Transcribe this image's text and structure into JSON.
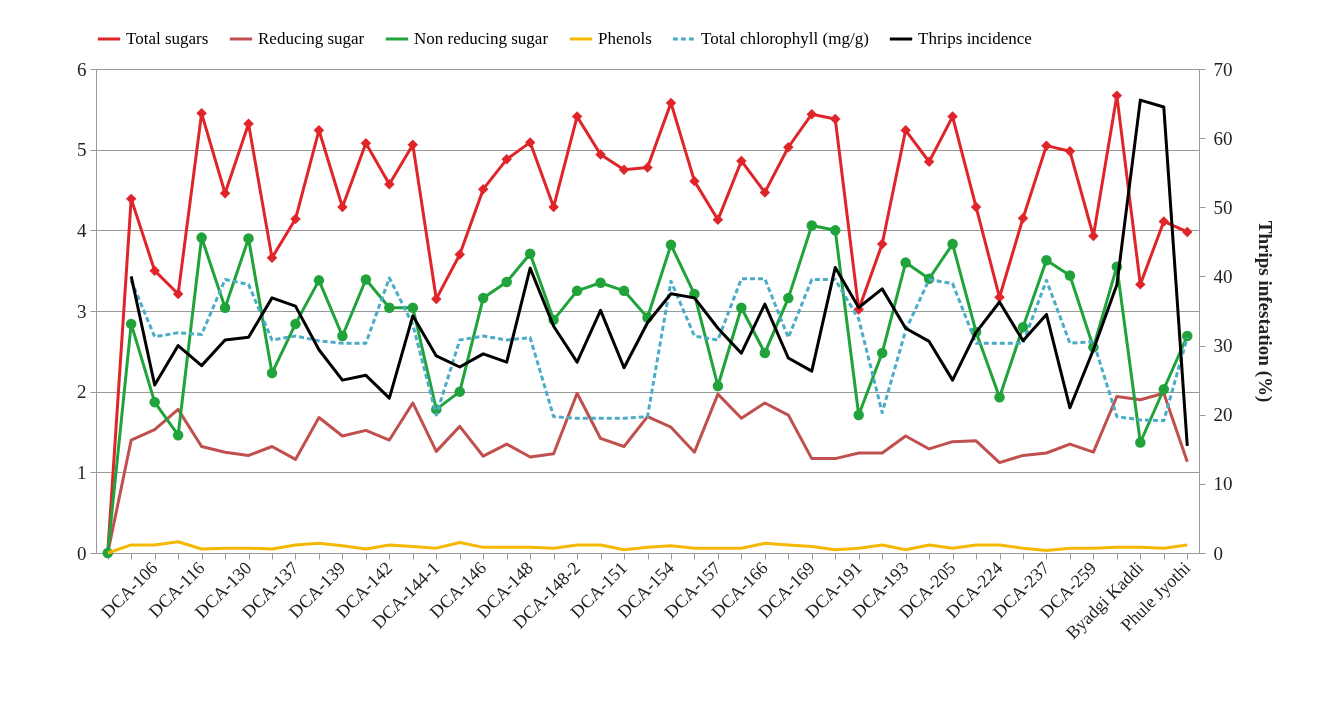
{
  "chart_data": {
    "type": "line",
    "y2label": "Thrips infestation (%)",
    "categories": [
      null,
      null,
      "DCA-106",
      null,
      "DCA-116",
      null,
      "DCA-130",
      null,
      "DCA-137",
      null,
      "DCA-139",
      null,
      "DCA-142",
      null,
      "DCA-144-1",
      null,
      "DCA-146",
      null,
      "DCA-148",
      null,
      "DCA-148-2",
      null,
      "DCA-151",
      null,
      "DCA-154",
      null,
      "DCA-157",
      null,
      "DCA-166",
      null,
      "DCA-169",
      null,
      "DCA-191",
      null,
      "DCA-193",
      null,
      "DCA-205",
      null,
      "DCA-224",
      null,
      "DCA-237",
      null,
      "DCA-259",
      null,
      "Byadgi Kaddi",
      null,
      "Phule Jyothi"
    ],
    "series": [
      {
        "name": "Total sugars",
        "color": "#e0252a",
        "marker": "diamond",
        "values": [
          0,
          4.39,
          3.5,
          3.21,
          5.45,
          4.46,
          5.32,
          3.66,
          4.14,
          5.24,
          4.29,
          5.08,
          4.57,
          5.06,
          3.15,
          3.7,
          4.51,
          4.88,
          5.09,
          4.29,
          5.41,
          4.94,
          4.75,
          4.78,
          5.58,
          4.61,
          4.13,
          4.86,
          4.47,
          5.03,
          5.44,
          5.38,
          3.02,
          3.83,
          5.24,
          4.85,
          5.41,
          4.29,
          3.17,
          4.15,
          5.05,
          4.98,
          3.93,
          5.67,
          3.33,
          4.11,
          3.98
        ]
      },
      {
        "name": "Reducing sugar",
        "color": "#c0504d",
        "values": [
          0,
          1.4,
          1.53,
          1.78,
          1.32,
          1.25,
          1.21,
          1.32,
          1.16,
          1.68,
          1.45,
          1.52,
          1.4,
          1.86,
          1.26,
          1.57,
          1.2,
          1.35,
          1.19,
          1.23,
          1.98,
          1.42,
          1.32,
          1.69,
          1.56,
          1.25,
          1.97,
          1.67,
          1.86,
          1.71,
          1.17,
          1.17,
          1.24,
          1.24,
          1.45,
          1.29,
          1.38,
          1.39,
          1.12,
          1.21,
          1.24,
          1.35,
          1.25,
          1.94,
          1.9,
          1.98,
          1.13
        ]
      },
      {
        "name": "Non reducing sugar",
        "color": "#1fa33a",
        "marker": "circle",
        "values": [
          0,
          2.84,
          1.87,
          1.46,
          3.91,
          3.04,
          3.9,
          2.23,
          2.84,
          3.38,
          2.69,
          3.39,
          3.04,
          3.04,
          1.78,
          2.0,
          3.16,
          3.36,
          3.71,
          2.89,
          3.25,
          3.35,
          3.25,
          2.92,
          3.82,
          3.21,
          2.07,
          3.04,
          2.48,
          3.16,
          4.06,
          4.0,
          1.71,
          2.48,
          3.6,
          3.4,
          3.83,
          2.74,
          1.93,
          2.8,
          3.63,
          3.44,
          2.55,
          3.55,
          1.37,
          2.03,
          2.69
        ]
      },
      {
        "name": "Phenols",
        "color": "#f5b800",
        "values": [
          0,
          0.1,
          0.1,
          0.14,
          0.05,
          0.06,
          0.06,
          0.05,
          0.1,
          0.12,
          0.09,
          0.05,
          0.1,
          0.08,
          0.06,
          0.13,
          0.07,
          0.07,
          0.07,
          0.06,
          0.1,
          0.1,
          0.04,
          0.07,
          0.09,
          0.06,
          0.06,
          0.06,
          0.12,
          0.1,
          0.08,
          0.04,
          0.06,
          0.1,
          0.04,
          0.1,
          0.06,
          0.1,
          0.1,
          0.06,
          0.03,
          0.06,
          0.06,
          0.07,
          0.07,
          0.06,
          0.1
        ]
      },
      {
        "name": "Total chlorophyll (mg/g)",
        "color": "#4bacc6",
        "line_style": "dashed",
        "values": [
          null,
          3.38,
          2.68,
          2.73,
          2.71,
          3.39,
          3.33,
          2.64,
          2.69,
          2.63,
          2.6,
          2.6,
          3.41,
          2.83,
          1.71,
          2.64,
          2.69,
          2.64,
          2.67,
          1.69,
          1.67,
          1.67,
          1.67,
          1.69,
          3.37,
          2.69,
          2.64,
          3.4,
          3.4,
          2.67,
          3.39,
          3.39,
          2.9,
          1.74,
          2.76,
          3.39,
          3.34,
          2.6,
          2.6,
          2.6,
          3.38,
          2.6,
          2.62,
          1.69,
          1.65,
          1.64,
          2.67
        ]
      },
      {
        "name": "Thrips incidence",
        "color": "#000000",
        "axis": "y2",
        "values": [
          null,
          40.0,
          24.3,
          30.0,
          27.1,
          30.8,
          31.2,
          36.9,
          35.7,
          29.4,
          25.0,
          25.7,
          22.4,
          34.3,
          28.5,
          26.9,
          28.8,
          27.6,
          41.2,
          32.8,
          27.6,
          35.1,
          26.8,
          33.3,
          37.5,
          36.9,
          32.5,
          28.9,
          36.0,
          28.2,
          26.3,
          41.3,
          35.5,
          38.2,
          32.5,
          30.6,
          25.0,
          31.9,
          36.3,
          30.7,
          34.5,
          21.0,
          29.4,
          38.8,
          65.5,
          64.5,
          15.5
        ]
      }
    ],
    "ylim": [
      0,
      6
    ],
    "yticks": [
      0,
      1,
      2,
      3,
      4,
      5,
      6
    ],
    "y2lim": [
      0,
      70
    ],
    "y2ticks": [
      0,
      10,
      20,
      30,
      40,
      50,
      60,
      70
    ],
    "grid": "y",
    "legend": "top"
  }
}
